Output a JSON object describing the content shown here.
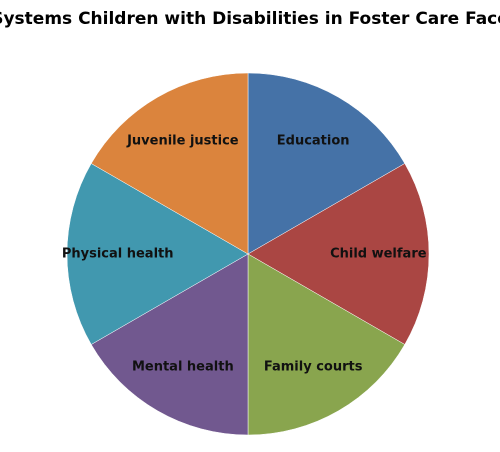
{
  "chart_data": {
    "type": "pie",
    "title": "Systems Children with Disabilities in Foster Care Face",
    "categories": [
      "Education",
      "Child welfare",
      "Family courts",
      "Mental health",
      "Physical health",
      "Juvenile justice"
    ],
    "values": [
      16.7,
      16.7,
      16.7,
      16.7,
      16.7,
      16.7
    ],
    "colors": [
      "#4572a7",
      "#aa4643",
      "#89a54e",
      "#71588f",
      "#4198af",
      "#db843d"
    ]
  }
}
